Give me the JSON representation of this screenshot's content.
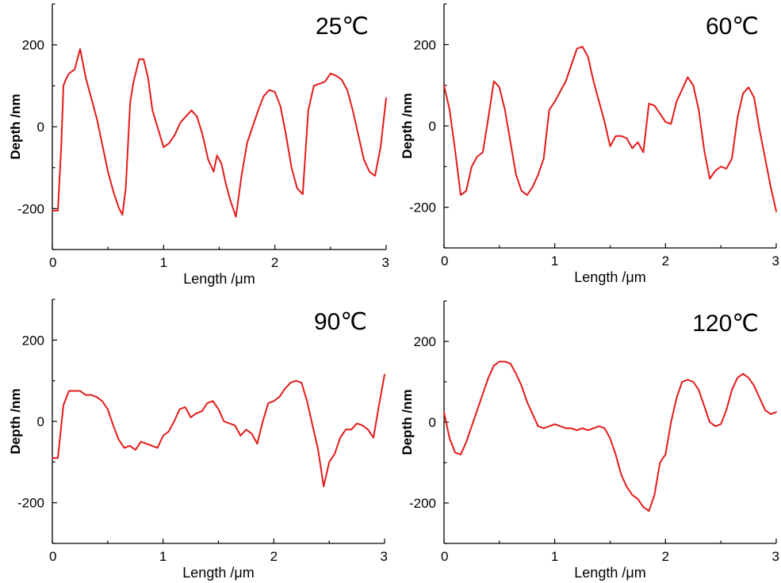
{
  "colors": {
    "series": "#e41a1a",
    "axis": "#000000"
  },
  "chart_data": [
    {
      "type": "line",
      "title": "25℃",
      "xlabel": "Length /μm",
      "ylabel": "Depth /nm",
      "xlim": [
        0,
        3
      ],
      "ylim": [
        -300,
        300
      ],
      "xticks": [
        0,
        1,
        2,
        3
      ],
      "yticks": [
        -200,
        0,
        200
      ],
      "grid": false,
      "series": [
        {
          "x": [
            0,
            0.05,
            0.08,
            0.1,
            0.12,
            0.15,
            0.2,
            0.25,
            0.3,
            0.4,
            0.5,
            0.55,
            0.6,
            0.63,
            0.66,
            0.7,
            0.73,
            0.78,
            0.82,
            0.86,
            0.9,
            0.95,
            1.0,
            1.05,
            1.1,
            1.15,
            1.2,
            1.25,
            1.3,
            1.35,
            1.4,
            1.45,
            1.48,
            1.52,
            1.56,
            1.6,
            1.65,
            1.7,
            1.75,
            1.8,
            1.85,
            1.9,
            1.95,
            2.0,
            2.05,
            2.1,
            2.15,
            2.2,
            2.25,
            2.3,
            2.35,
            2.4,
            2.45,
            2.5,
            2.55,
            2.6,
            2.65,
            2.7,
            2.75,
            2.8,
            2.85,
            2.9,
            2.95,
            3.0
          ],
          "y": [
            -205,
            -205,
            -50,
            100,
            115,
            130,
            140,
            190,
            120,
            20,
            -110,
            -160,
            -200,
            -215,
            -150,
            60,
            110,
            165,
            165,
            120,
            40,
            -5,
            -50,
            -40,
            -20,
            10,
            25,
            40,
            25,
            -20,
            -80,
            -110,
            -70,
            -90,
            -140,
            -180,
            -220,
            -120,
            -40,
            0,
            40,
            75,
            90,
            85,
            50,
            -20,
            -100,
            -150,
            -165,
            40,
            100,
            105,
            110,
            130,
            125,
            115,
            90,
            40,
            -20,
            -80,
            -110,
            -120,
            -50,
            70
          ]
        }
      ]
    },
    {
      "type": "line",
      "title": "60℃",
      "xlabel": "Length /μm",
      "ylabel": "Depth /nm",
      "xlim": [
        0,
        3
      ],
      "ylim": [
        -300,
        300
      ],
      "xticks": [
        0,
        1,
        2,
        3
      ],
      "yticks": [
        -200,
        0,
        200
      ],
      "grid": false,
      "series": [
        {
          "x": [
            0,
            0.05,
            0.1,
            0.15,
            0.2,
            0.25,
            0.3,
            0.35,
            0.4,
            0.45,
            0.5,
            0.55,
            0.6,
            0.65,
            0.7,
            0.75,
            0.8,
            0.85,
            0.9,
            0.95,
            1.0,
            1.1,
            1.2,
            1.25,
            1.3,
            1.35,
            1.4,
            1.45,
            1.5,
            1.55,
            1.6,
            1.65,
            1.7,
            1.75,
            1.8,
            1.85,
            1.9,
            1.95,
            2.0,
            2.05,
            2.1,
            2.15,
            2.2,
            2.25,
            2.3,
            2.35,
            2.4,
            2.45,
            2.5,
            2.55,
            2.6,
            2.65,
            2.7,
            2.75,
            2.8,
            2.85,
            2.9,
            2.95,
            3.0
          ],
          "y": [
            100,
            40,
            -60,
            -170,
            -160,
            -100,
            -75,
            -65,
            20,
            110,
            95,
            40,
            -40,
            -120,
            -160,
            -170,
            -150,
            -120,
            -80,
            40,
            60,
            110,
            190,
            195,
            170,
            110,
            60,
            10,
            -50,
            -25,
            -25,
            -30,
            -55,
            -40,
            -65,
            55,
            50,
            30,
            10,
            5,
            60,
            90,
            120,
            100,
            40,
            -60,
            -130,
            -110,
            -100,
            -105,
            -80,
            20,
            80,
            95,
            70,
            -10,
            -80,
            -150,
            -210
          ]
        }
      ]
    },
    {
      "type": "line",
      "title": "90℃",
      "xlabel": "Length /μm",
      "ylabel": "Depth /nm",
      "xlim": [
        0,
        3
      ],
      "ylim": [
        -300,
        300
      ],
      "xticks": [
        0,
        1,
        2,
        3
      ],
      "yticks": [
        -200,
        0,
        200
      ],
      "grid": false,
      "series": [
        {
          "x": [
            0,
            0.05,
            0.1,
            0.15,
            0.2,
            0.25,
            0.3,
            0.35,
            0.4,
            0.45,
            0.5,
            0.55,
            0.6,
            0.65,
            0.7,
            0.75,
            0.8,
            0.85,
            0.9,
            0.95,
            1.0,
            1.05,
            1.1,
            1.15,
            1.2,
            1.25,
            1.3,
            1.35,
            1.4,
            1.45,
            1.5,
            1.55,
            1.6,
            1.65,
            1.7,
            1.75,
            1.8,
            1.85,
            1.9,
            1.95,
            2.0,
            2.05,
            2.1,
            2.15,
            2.2,
            2.25,
            2.3,
            2.35,
            2.4,
            2.45,
            2.5,
            2.55,
            2.6,
            2.65,
            2.7,
            2.75,
            2.8,
            2.85,
            2.9,
            2.95,
            3.0
          ],
          "y": [
            -90,
            -90,
            40,
            75,
            75,
            75,
            65,
            65,
            60,
            50,
            30,
            -10,
            -45,
            -65,
            -60,
            -70,
            -50,
            -55,
            -60,
            -65,
            -35,
            -25,
            0,
            30,
            35,
            10,
            20,
            25,
            45,
            50,
            30,
            0,
            -5,
            -10,
            -35,
            -20,
            -30,
            -55,
            0,
            45,
            50,
            60,
            80,
            95,
            100,
            95,
            50,
            -10,
            -70,
            -160,
            -100,
            -80,
            -40,
            -20,
            -20,
            -5,
            -10,
            -20,
            -40,
            40,
            115
          ]
        }
      ]
    },
    {
      "type": "line",
      "title": "120℃",
      "xlabel": "Length /μm",
      "ylabel": "Depth /nm",
      "xlim": [
        0,
        3
      ],
      "ylim": [
        -300,
        300
      ],
      "xticks": [
        0,
        1,
        2,
        3
      ],
      "yticks": [
        -200,
        0,
        200
      ],
      "grid": false,
      "series": [
        {
          "x": [
            0,
            0.05,
            0.1,
            0.15,
            0.2,
            0.25,
            0.3,
            0.35,
            0.4,
            0.45,
            0.5,
            0.55,
            0.6,
            0.65,
            0.7,
            0.75,
            0.8,
            0.85,
            0.9,
            0.95,
            1.0,
            1.05,
            1.1,
            1.15,
            1.2,
            1.25,
            1.3,
            1.35,
            1.4,
            1.45,
            1.5,
            1.55,
            1.6,
            1.65,
            1.7,
            1.75,
            1.8,
            1.85,
            1.9,
            1.95,
            2.0,
            2.05,
            2.1,
            2.15,
            2.2,
            2.25,
            2.3,
            2.35,
            2.4,
            2.45,
            2.5,
            2.55,
            2.6,
            2.65,
            2.7,
            2.75,
            2.8,
            2.85,
            2.9,
            2.95,
            3.0
          ],
          "y": [
            25,
            -40,
            -75,
            -80,
            -50,
            -10,
            30,
            70,
            110,
            140,
            150,
            150,
            145,
            120,
            90,
            50,
            20,
            -10,
            -15,
            -10,
            -5,
            -10,
            -15,
            -15,
            -20,
            -15,
            -20,
            -15,
            -10,
            -15,
            -40,
            -80,
            -130,
            -160,
            -180,
            -190,
            -210,
            -220,
            -180,
            -100,
            -80,
            0,
            60,
            100,
            105,
            100,
            80,
            40,
            0,
            -10,
            -5,
            30,
            80,
            110,
            120,
            110,
            90,
            60,
            30,
            20,
            25
          ]
        }
      ]
    }
  ]
}
